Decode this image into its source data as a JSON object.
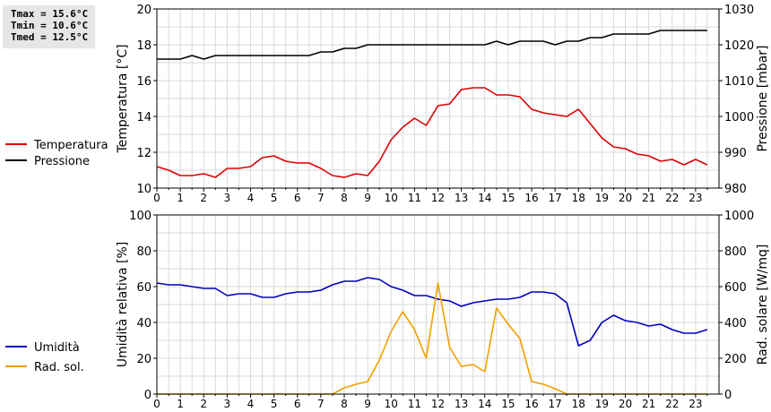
{
  "stats": {
    "tmax": "Tmax = 15.6°C",
    "tmin": "Tmin = 10.6°C",
    "tmed": "Tmed = 12.5°C"
  },
  "legend": {
    "top": [
      {
        "label": "Temperatura",
        "color": "#dd0000"
      },
      {
        "label": "Pressione",
        "color": "#000000"
      }
    ],
    "bottom": [
      {
        "label": "Umidità",
        "color": "#0000bb"
      },
      {
        "label": "Rad. sol.",
        "color": "#f0a000"
      }
    ]
  },
  "chart_data": [
    {
      "type": "line",
      "ylabel": "Temperatura [°C]",
      "y2label": "Pressione [mbar]",
      "xlim": [
        0,
        24
      ],
      "ylim": [
        10,
        20
      ],
      "y2lim": [
        980,
        1030
      ],
      "xticks": [
        "0",
        "1",
        "2",
        "3",
        "4",
        "5",
        "6",
        "7",
        "8",
        "9",
        "10",
        "11",
        "12",
        "13",
        "14",
        "15",
        "16",
        "17",
        "18",
        "19",
        "20",
        "21",
        "22",
        "23"
      ],
      "yticks": [
        "10",
        "12",
        "14",
        "16",
        "18",
        "20"
      ],
      "y2ticks": [
        "980",
        "990",
        "1000",
        "1010",
        "1020",
        "1030"
      ],
      "grid": true,
      "series": [
        {
          "name": "Temperatura",
          "axis": "left",
          "color": "#dd0000",
          "x": [
            0,
            0.5,
            1,
            1.5,
            2,
            2.5,
            3,
            3.5,
            4,
            4.5,
            5,
            5.5,
            6,
            6.5,
            7,
            7.5,
            8,
            8.5,
            9,
            9.5,
            10,
            10.5,
            11,
            11.5,
            12,
            12.5,
            13,
            13.5,
            14,
            14.5,
            15,
            15.5,
            16,
            16.5,
            17,
            17.5,
            18,
            18.5,
            19,
            19.5,
            20,
            20.5,
            21,
            21.5,
            22,
            22.5,
            23,
            23.5
          ],
          "y": [
            11.2,
            11.0,
            10.7,
            10.7,
            10.8,
            10.6,
            11.1,
            11.1,
            11.2,
            11.7,
            11.8,
            11.5,
            11.4,
            11.4,
            11.1,
            10.7,
            10.6,
            10.8,
            10.7,
            11.5,
            12.7,
            13.4,
            13.9,
            13.5,
            14.6,
            14.7,
            15.5,
            15.6,
            15.6,
            15.2,
            15.2,
            15.1,
            14.4,
            14.2,
            14.1,
            14.0,
            14.4,
            13.6,
            12.8,
            12.3,
            12.2,
            11.9,
            11.8,
            11.5,
            11.6,
            11.3,
            11.6,
            11.3
          ]
        },
        {
          "name": "Pressione",
          "axis": "right",
          "color": "#000000",
          "x": [
            0,
            1,
            1.5,
            2,
            2.5,
            3,
            4,
            5,
            6,
            6.5,
            7,
            7.5,
            8,
            8.5,
            9,
            10,
            11,
            12,
            13,
            14,
            14.5,
            15,
            15.5,
            16,
            16.5,
            17,
            17.5,
            18,
            18.5,
            19,
            19.5,
            20,
            21,
            21.5,
            22,
            23,
            23.5
          ],
          "y": [
            1016,
            1016,
            1017,
            1016,
            1017,
            1017,
            1017,
            1017,
            1017,
            1017,
            1018,
            1018,
            1019,
            1019,
            1020,
            1020,
            1020,
            1020,
            1020,
            1020,
            1021,
            1020,
            1021,
            1021,
            1021,
            1020,
            1021,
            1021,
            1022,
            1022,
            1023,
            1023,
            1023,
            1024,
            1024,
            1024,
            1024
          ]
        }
      ]
    },
    {
      "type": "line",
      "ylabel": "Umidità relativa [%]",
      "y2label": "Rad. solare [W/mq]",
      "xlim": [
        0,
        24
      ],
      "ylim": [
        0,
        100
      ],
      "y2lim": [
        0,
        1000
      ],
      "xticks": [
        "0",
        "1",
        "2",
        "3",
        "4",
        "5",
        "6",
        "7",
        "8",
        "9",
        "10",
        "11",
        "12",
        "13",
        "14",
        "15",
        "16",
        "17",
        "18",
        "19",
        "20",
        "21",
        "22",
        "23"
      ],
      "yticks": [
        "0",
        "20",
        "40",
        "60",
        "80",
        "100"
      ],
      "y2ticks": [
        "0",
        "200",
        "400",
        "600",
        "800",
        "1000"
      ],
      "grid": true,
      "series": [
        {
          "name": "Umidità",
          "axis": "left",
          "color": "#0000bb",
          "x": [
            0,
            0.5,
            1,
            1.5,
            2,
            2.5,
            3,
            3.5,
            4,
            4.5,
            5,
            5.5,
            6,
            6.5,
            7,
            7.5,
            8,
            8.5,
            9,
            9.5,
            10,
            10.5,
            11,
            11.5,
            12,
            12.5,
            13,
            13.5,
            14,
            14.5,
            15,
            15.5,
            16,
            16.5,
            17,
            17.5,
            18,
            18.5,
            19,
            19.5,
            20,
            20.5,
            21,
            21.5,
            22,
            22.5,
            23,
            23.5
          ],
          "y": [
            62,
            61,
            61,
            60,
            59,
            59,
            55,
            56,
            56,
            54,
            54,
            56,
            57,
            57,
            58,
            61,
            63,
            63,
            65,
            64,
            60,
            58,
            55,
            55,
            53,
            52,
            49,
            51,
            52,
            53,
            53,
            54,
            57,
            57,
            56,
            51,
            27,
            30,
            40,
            44,
            41,
            40,
            38,
            39,
            36,
            34,
            34,
            36
          ]
        },
        {
          "name": "Rad. sol.",
          "axis": "right",
          "color": "#f0a000",
          "x": [
            0,
            0.5,
            1,
            1.5,
            2,
            2.5,
            3,
            3.5,
            4,
            4.5,
            5,
            5.5,
            6,
            6.5,
            7,
            7.5,
            8,
            8.5,
            9,
            9.5,
            10,
            10.5,
            11,
            11.5,
            12,
            12.5,
            13,
            13.5,
            14,
            14.5,
            15,
            15.5,
            16,
            16.5,
            17,
            17.5,
            18,
            18.5,
            19,
            19.5,
            20,
            20.5,
            21,
            21.5,
            22,
            22.5,
            23,
            23.5
          ],
          "y": [
            0,
            0,
            0,
            0,
            0,
            0,
            0,
            0,
            0,
            0,
            0,
            0,
            0,
            0,
            0,
            0,
            35,
            55,
            70,
            190,
            350,
            460,
            360,
            200,
            620,
            260,
            155,
            165,
            125,
            480,
            390,
            310,
            70,
            55,
            30,
            0,
            0,
            0,
            0,
            0,
            0,
            0,
            0,
            0,
            0,
            0,
            0,
            0
          ]
        }
      ]
    }
  ]
}
